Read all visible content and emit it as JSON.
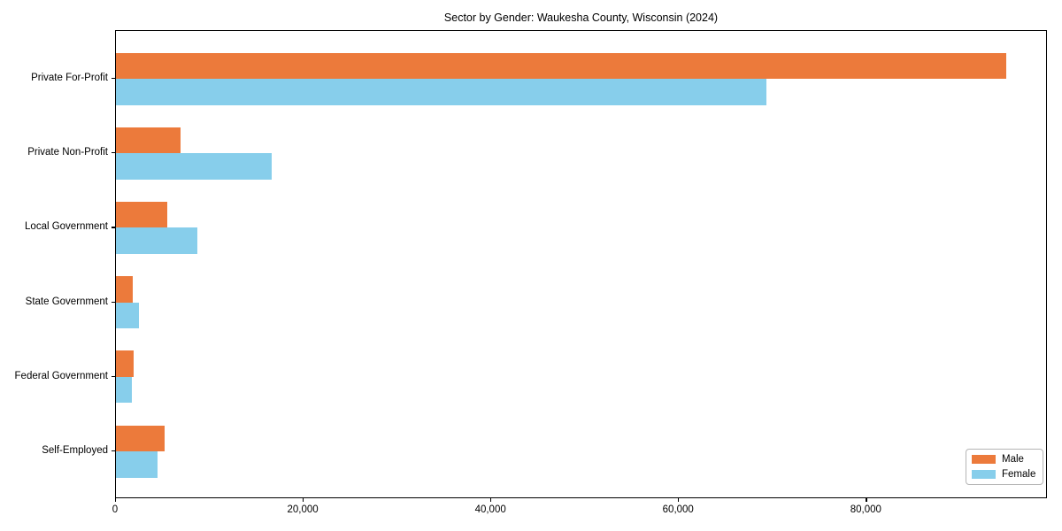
{
  "chart_data": {
    "type": "bar",
    "orientation": "horizontal",
    "title": "Sector by Gender: Waukesha County, Wisconsin (2024)",
    "categories": [
      "Private For-Profit",
      "Private Non-Profit",
      "Local Government",
      "State Government",
      "Federal Government",
      "Self-Employed"
    ],
    "series": [
      {
        "name": "Male",
        "color": "#EC7A3B",
        "values": [
          94900,
          6900,
          5500,
          1800,
          1850,
          5200
        ]
      },
      {
        "name": "Female",
        "color": "#87CEEB",
        "values": [
          69300,
          16600,
          8700,
          2450,
          1700,
          4400
        ]
      }
    ],
    "xlabel": "",
    "ylabel": "",
    "xlim": [
      0,
      99300
    ],
    "xticks": [
      0,
      20000,
      40000,
      60000,
      80000
    ],
    "xtick_labels": [
      "0",
      "20,000",
      "40,000",
      "60,000",
      "80,000"
    ],
    "legend_position": "lower right",
    "grid": false,
    "background_color": "#ffffff",
    "spine_color": "#000000"
  }
}
